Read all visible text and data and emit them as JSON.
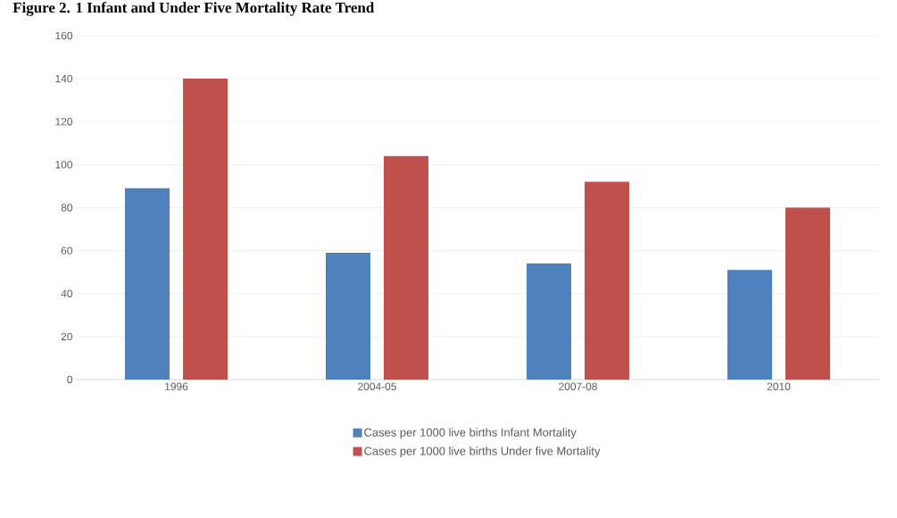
{
  "chart_data": {
    "type": "bar",
    "title": "Figure 2. 1  Infant and Under Five Mortality Rate Trend",
    "categories": [
      "1996",
      "2004-05",
      "2007-08",
      "2010"
    ],
    "series": [
      {
        "name": "Cases per 1000 live births Infant Mortality",
        "color": "#4f81bd",
        "values": [
          89,
          59,
          54,
          51
        ]
      },
      {
        "name": "Cases per 1000 live births Under five Mortality",
        "color": "#c0504d",
        "values": [
          140,
          104,
          92,
          80
        ]
      }
    ],
    "ylim": [
      0,
      160
    ],
    "yticks": [
      0,
      20,
      40,
      60,
      80,
      100,
      120,
      140,
      160
    ],
    "grid": "y",
    "legend": "bottom"
  }
}
